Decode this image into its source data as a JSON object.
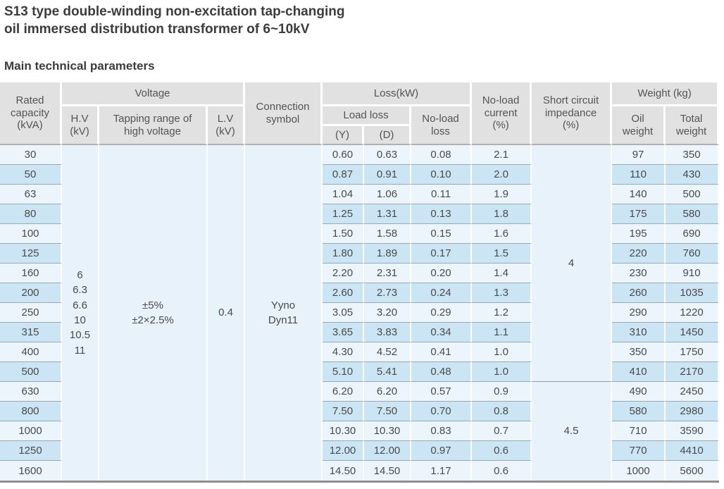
{
  "page": {
    "title_line1": "S13 type double-winding non-excitation tap-changing",
    "title_line2": "oil immersed distribution transformer of 6~10kV",
    "section_heading": "Main technical parameters"
  },
  "colors": {
    "header_bg": "#e1e1e1",
    "row_light": "#ecf5fc",
    "row_dark": "#cbe5f5",
    "merged_bg": "#e7f2fa",
    "grid_line": "#a6a6a6",
    "header_line": "#b0b0b0",
    "table_bottom": "#8f8f8f",
    "text": "#4a4a4a",
    "title_text": "#3c3c3c"
  },
  "table": {
    "headers": {
      "rated_capacity": [
        "Rated",
        "capacity",
        "(kVA)"
      ],
      "voltage_group": "Voltage",
      "hv": [
        "H.V",
        "(kV)"
      ],
      "tapping_range": [
        "Tapping range of",
        "high voltage"
      ],
      "lv": [
        "L.V",
        "(kV)"
      ],
      "connection_symbol": [
        "Connection",
        "symbol"
      ],
      "loss_group": "Loss(kW)",
      "load_loss": "Load loss",
      "load_loss_y": "(Y)",
      "load_loss_d": "(D)",
      "no_load_loss": [
        "No-load",
        "loss"
      ],
      "no_load_current": [
        "No-load",
        "current",
        "(%)"
      ],
      "short_circuit_impedance": [
        "Short circuit",
        "impedance",
        "(%)"
      ],
      "weight_group": "Weight (kg)",
      "oil_weight": [
        "Oil",
        "weight"
      ],
      "total_weight": [
        "Total",
        "weight"
      ]
    },
    "shared": {
      "hv_values": [
        "6",
        "6.3",
        "6.6",
        "10",
        "10.5",
        "11"
      ],
      "tapping_range": [
        "±5%",
        "±2×2.5%"
      ],
      "lv_value": "0.4",
      "connection_symbol": [
        "Yyno",
        "Dyn11"
      ],
      "impedance_groups": [
        {
          "value": "4",
          "row_span": 12
        },
        {
          "value": "4.5",
          "row_span": 5
        }
      ]
    },
    "rows": [
      {
        "capacity": "30",
        "load_loss_y": "0.60",
        "load_loss_d": "0.63",
        "no_load_loss": "0.08",
        "no_load_current": "2.1",
        "oil_weight": "97",
        "total_weight": "350"
      },
      {
        "capacity": "50",
        "load_loss_y": "0.87",
        "load_loss_d": "0.91",
        "no_load_loss": "0.10",
        "no_load_current": "2.0",
        "oil_weight": "110",
        "total_weight": "430"
      },
      {
        "capacity": "63",
        "load_loss_y": "1.04",
        "load_loss_d": "1.06",
        "no_load_loss": "0.11",
        "no_load_current": "1.9",
        "oil_weight": "140",
        "total_weight": "500"
      },
      {
        "capacity": "80",
        "load_loss_y": "1.25",
        "load_loss_d": "1.31",
        "no_load_loss": "0.13",
        "no_load_current": "1.8",
        "oil_weight": "175",
        "total_weight": "580"
      },
      {
        "capacity": "100",
        "load_loss_y": "1.50",
        "load_loss_d": "1.58",
        "no_load_loss": "0.15",
        "no_load_current": "1.6",
        "oil_weight": "195",
        "total_weight": "690"
      },
      {
        "capacity": "125",
        "load_loss_y": "1.80",
        "load_loss_d": "1.89",
        "no_load_loss": "0.17",
        "no_load_current": "1.5",
        "oil_weight": "220",
        "total_weight": "760"
      },
      {
        "capacity": "160",
        "load_loss_y": "2.20",
        "load_loss_d": "2.31",
        "no_load_loss": "0.20",
        "no_load_current": "1.4",
        "oil_weight": "230",
        "total_weight": "910"
      },
      {
        "capacity": "200",
        "load_loss_y": "2.60",
        "load_loss_d": "2.73",
        "no_load_loss": "0.24",
        "no_load_current": "1.3",
        "oil_weight": "260",
        "total_weight": "1035"
      },
      {
        "capacity": "250",
        "load_loss_y": "3.05",
        "load_loss_d": "3.20",
        "no_load_loss": "0.29",
        "no_load_current": "1.2",
        "oil_weight": "290",
        "total_weight": "1220"
      },
      {
        "capacity": "315",
        "load_loss_y": "3.65",
        "load_loss_d": "3.83",
        "no_load_loss": "0.34",
        "no_load_current": "1.1",
        "oil_weight": "310",
        "total_weight": "1450"
      },
      {
        "capacity": "400",
        "load_loss_y": "4.30",
        "load_loss_d": "4.52",
        "no_load_loss": "0.41",
        "no_load_current": "1.0",
        "oil_weight": "350",
        "total_weight": "1750"
      },
      {
        "capacity": "500",
        "load_loss_y": "5.10",
        "load_loss_d": "5.41",
        "no_load_loss": "0.48",
        "no_load_current": "1.0",
        "oil_weight": "410",
        "total_weight": "2170"
      },
      {
        "capacity": "630",
        "load_loss_y": "6.20",
        "load_loss_d": "6.20",
        "no_load_loss": "0.57",
        "no_load_current": "0.9",
        "oil_weight": "490",
        "total_weight": "2450"
      },
      {
        "capacity": "800",
        "load_loss_y": "7.50",
        "load_loss_d": "7.50",
        "no_load_loss": "0.70",
        "no_load_current": "0.8",
        "oil_weight": "580",
        "total_weight": "2980"
      },
      {
        "capacity": "1000",
        "load_loss_y": "10.30",
        "load_loss_d": "10.30",
        "no_load_loss": "0.83",
        "no_load_current": "0.7",
        "oil_weight": "710",
        "total_weight": "3590"
      },
      {
        "capacity": "1250",
        "load_loss_y": "12.00",
        "load_loss_d": "12.00",
        "no_load_loss": "0.97",
        "no_load_current": "0.6",
        "oil_weight": "770",
        "total_weight": "4410"
      },
      {
        "capacity": "1600",
        "load_loss_y": "14.50",
        "load_loss_d": "14.50",
        "no_load_loss": "1.17",
        "no_load_current": "0.6",
        "oil_weight": "1000",
        "total_weight": "5600"
      }
    ]
  }
}
